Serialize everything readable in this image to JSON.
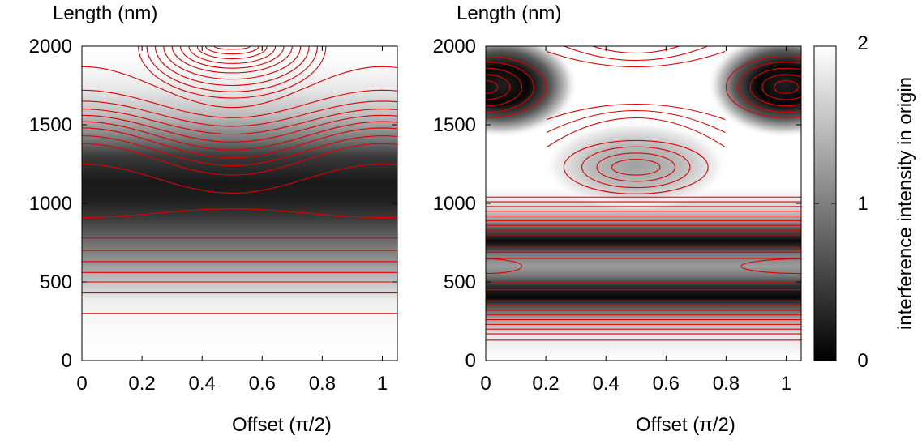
{
  "chart_data": [
    {
      "type": "heatmap",
      "panel": "left",
      "ylabel": "Length (nm)",
      "xlabel": "Offset (π/2)",
      "xlim": [
        0,
        1.05
      ],
      "ylim": [
        0,
        2000
      ],
      "x_ticks": [
        0,
        0.2,
        0.4,
        0.6,
        0.8,
        1
      ],
      "x_tick_labels": [
        "0",
        "0.2",
        "0.4",
        "0.6",
        "0.8",
        "1"
      ],
      "y_ticks": [
        0,
        500,
        1000,
        1500,
        2000
      ],
      "y_tick_labels": [
        "0",
        "500",
        "1000",
        "1500",
        "2000"
      ],
      "colormap": "black-to-white grayscale",
      "contour_color": "#e00000",
      "straight_contours_y": [
        300,
        430,
        500,
        560,
        630,
        700,
        780
      ],
      "wavy_contours": [
        {
          "y_center": 940,
          "y_ends": 910,
          "y_middle": 965
        },
        {
          "y_center": 1120,
          "y_ends": 1250,
          "y_middle": 1065
        },
        {
          "y_center": 1260,
          "y_ends": 1380,
          "y_middle": 1180
        },
        {
          "y_center": 1320,
          "y_ends": 1430,
          "y_middle": 1240
        },
        {
          "y_center": 1370,
          "y_ends": 1480,
          "y_middle": 1290
        },
        {
          "y_center": 1420,
          "y_ends": 1520,
          "y_middle": 1340
        },
        {
          "y_center": 1470,
          "y_ends": 1560,
          "y_middle": 1390
        },
        {
          "y_center": 1520,
          "y_ends": 1600,
          "y_middle": 1440
        },
        {
          "y_center": 1570,
          "y_ends": 1650,
          "y_middle": 1490
        },
        {
          "y_center": 1630,
          "y_ends": 1720,
          "y_middle": 1545
        },
        {
          "y_center": 1700,
          "y_ends": 1870,
          "y_middle": 1610
        }
      ],
      "top_arcs_y_bottom": [
        1670,
        1710,
        1750,
        1790,
        1830,
        1860,
        1890,
        1920,
        1950,
        1980
      ]
    },
    {
      "type": "heatmap",
      "panel": "right",
      "ylabel": "Length (nm)",
      "xlabel": "Offset (π/2)",
      "xlim": [
        0,
        1.05
      ],
      "ylim": [
        0,
        2000
      ],
      "x_ticks": [
        0,
        0.2,
        0.4,
        0.6,
        0.8,
        1
      ],
      "x_tick_labels": [
        "0",
        "0.2",
        "0.4",
        "0.6",
        "0.8",
        "1"
      ],
      "y_ticks": [
        0,
        500,
        1000,
        1500,
        2000
      ],
      "y_tick_labels": [
        "0",
        "500",
        "1000",
        "1500",
        "2000"
      ],
      "colormap": "black-to-white grayscale",
      "contour_color": "#e00000",
      "horizontal_contours_y": [
        130,
        170,
        200,
        230,
        260,
        290,
        320,
        350,
        380,
        450,
        500,
        650,
        690,
        720,
        800,
        830,
        860,
        890,
        920,
        950,
        980,
        1010,
        1040
      ],
      "center_ellipses": [
        {
          "x": 0.5,
          "y": 1230,
          "rx": 0.08,
          "ry": 50
        },
        {
          "x": 0.5,
          "y": 1230,
          "rx": 0.13,
          "ry": 90
        },
        {
          "x": 0.5,
          "y": 1230,
          "rx": 0.18,
          "ry": 130
        },
        {
          "x": 0.5,
          "y": 1230,
          "rx": 0.24,
          "ry": 170
        }
      ],
      "corner_ellipses": [
        {
          "x": 0,
          "y": 1740,
          "rx": 0.04,
          "ry": 40
        },
        {
          "x": 0,
          "y": 1740,
          "rx": 0.08,
          "ry": 80
        },
        {
          "x": 0,
          "y": 1740,
          "rx": 0.12,
          "ry": 120
        },
        {
          "x": 0,
          "y": 1740,
          "rx": 0.16,
          "ry": 160
        },
        {
          "x": 0,
          "y": 1740,
          "rx": 0.2,
          "ry": 195
        },
        {
          "x": 1,
          "y": 1740,
          "rx": 0.04,
          "ry": 40
        },
        {
          "x": 1,
          "y": 1740,
          "rx": 0.08,
          "ry": 80
        },
        {
          "x": 1,
          "y": 1740,
          "rx": 0.12,
          "ry": 120
        },
        {
          "x": 1,
          "y": 1740,
          "rx": 0.16,
          "ry": 160
        },
        {
          "x": 1,
          "y": 1740,
          "rx": 0.2,
          "ry": 195
        }
      ],
      "side_lobes_y": 600,
      "saddle": {
        "x": 0.5,
        "y": 1750
      },
      "colorbar": {
        "label": "interference intensity in origin",
        "range": [
          0,
          2
        ],
        "ticks": [
          0,
          1,
          2
        ],
        "tick_labels": [
          "0",
          "1",
          "2"
        ]
      }
    }
  ]
}
